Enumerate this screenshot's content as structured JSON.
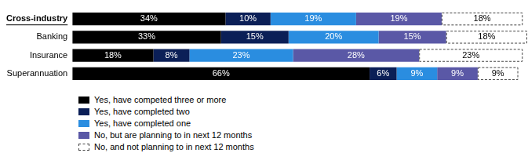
{
  "chart_data": {
    "type": "bar",
    "orientation": "horizontal",
    "stacked": true,
    "categories": [
      "Cross-industry",
      "Banking",
      "Insurance",
      "Superannuation"
    ],
    "series": [
      {
        "name": "Yes, have competed three or more",
        "color": "#000000",
        "values": [
          34,
          33,
          18,
          66
        ],
        "value_labels": [
          "34%",
          "33%",
          "18%",
          "66%"
        ]
      },
      {
        "name": "Yes, have completed two",
        "color": "#0b1f57",
        "values": [
          10,
          15,
          8,
          6
        ],
        "value_labels": [
          "10%",
          "15%",
          "8%",
          "6%"
        ]
      },
      {
        "name": "Yes, have completed one",
        "color": "#2a8de0",
        "values": [
          19,
          20,
          23,
          9
        ],
        "value_labels": [
          "19%",
          "20%",
          "23%",
          "9%"
        ]
      },
      {
        "name": "No, but are planning to in next 12 months",
        "color": "#5a58a6",
        "values": [
          19,
          15,
          28,
          9
        ],
        "value_labels": [
          "19%",
          "15%",
          "28%",
          "9%"
        ]
      },
      {
        "name": "No, and not planning to in next 12 months",
        "color": "#ffffff",
        "line_style": "dashed",
        "values": [
          18,
          18,
          23,
          9
        ],
        "value_labels": [
          "18%",
          "18%",
          "23%",
          "9%"
        ]
      }
    ],
    "xlim": [
      0,
      101
    ],
    "grid": false,
    "tick_labels": "y",
    "data_labels": true,
    "legend": "bottom-left"
  }
}
